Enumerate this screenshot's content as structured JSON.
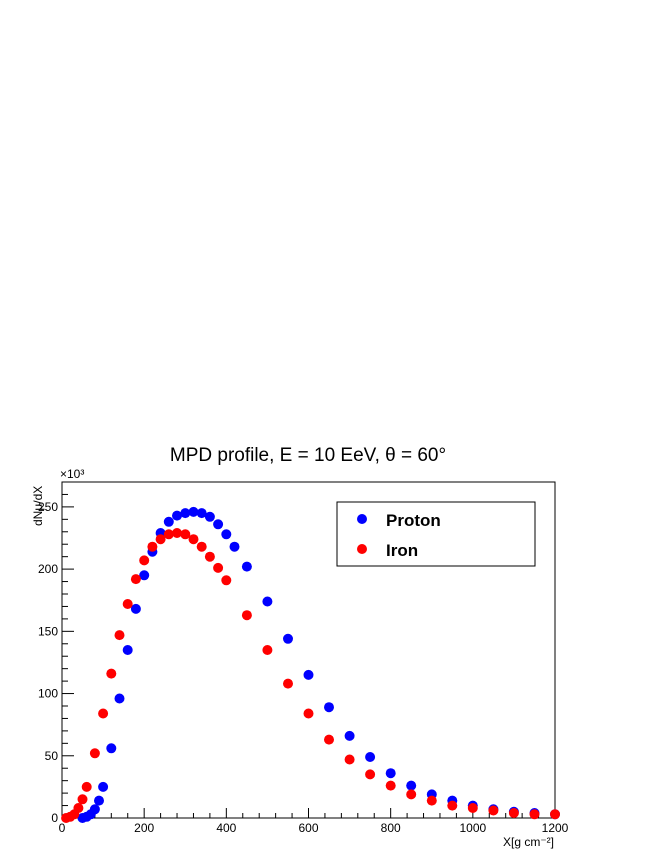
{
  "chart_data": {
    "type": "scatter",
    "title": "MPD profile, E = 10 EeV, θ = 60°",
    "xlabel": "X[g cm⁻²]",
    "ylabel": "dNμ/dX",
    "y_multiplier": "×10³",
    "xlim": [
      0,
      1200
    ],
    "ylim": [
      0,
      270
    ],
    "x_ticks": [
      "0",
      "200",
      "400",
      "600",
      "800",
      "1000",
      "1200"
    ],
    "y_ticks": [
      "0",
      "50",
      "100",
      "150",
      "200",
      "250"
    ],
    "legend_position": "top-right",
    "grid": false,
    "series": [
      {
        "name": "Proton",
        "color": "#0000ff",
        "x": [
          50,
          60,
          70,
          80,
          90,
          100,
          120,
          140,
          160,
          180,
          200,
          220,
          240,
          260,
          280,
          300,
          320,
          340,
          360,
          380,
          400,
          420,
          450,
          500,
          550,
          600,
          650,
          700,
          750,
          800,
          850,
          900,
          950,
          1000,
          1050,
          1100,
          1150,
          1200
        ],
        "y": [
          0,
          1,
          3,
          7,
          14,
          25,
          56,
          96,
          135,
          168,
          195,
          214,
          229,
          238,
          243,
          245,
          246,
          245,
          242,
          236,
          228,
          218,
          202,
          174,
          144,
          115,
          89,
          66,
          49,
          36,
          26,
          19,
          14,
          10,
          7,
          5,
          4,
          3
        ]
      },
      {
        "name": "Iron",
        "color": "#ff0000",
        "x": [
          10,
          20,
          30,
          40,
          50,
          60,
          80,
          100,
          120,
          140,
          160,
          180,
          200,
          220,
          240,
          260,
          280,
          300,
          320,
          340,
          360,
          380,
          400,
          450,
          500,
          550,
          600,
          650,
          700,
          750,
          800,
          850,
          900,
          950,
          1000,
          1050,
          1100,
          1150,
          1200
        ],
        "y": [
          0,
          1,
          3,
          8,
          15,
          25,
          52,
          84,
          116,
          147,
          172,
          192,
          207,
          218,
          224,
          228,
          229,
          228,
          224,
          218,
          210,
          201,
          191,
          163,
          135,
          108,
          84,
          63,
          47,
          35,
          26,
          19,
          14,
          10,
          8,
          6,
          4,
          3,
          3
        ]
      }
    ]
  }
}
